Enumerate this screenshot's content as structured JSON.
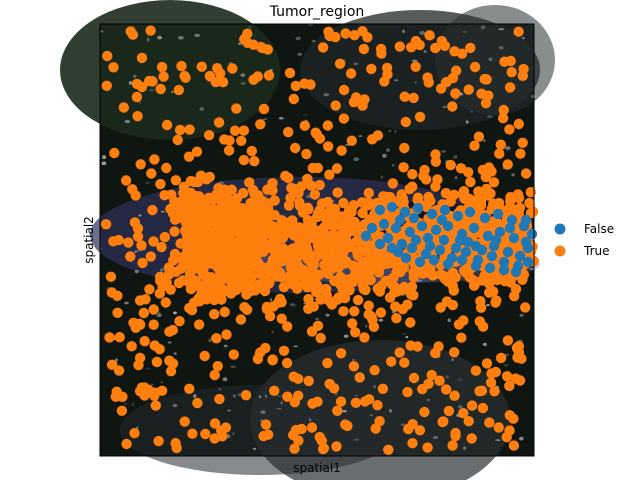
{
  "chart_data": {
    "type": "scatter",
    "title": "Tumor_region",
    "xlabel": "spatial1",
    "ylabel": "spatial2",
    "xticks": [],
    "yticks": [],
    "grid": false,
    "legend": {
      "placement": "right",
      "entries": [
        {
          "label": "False",
          "color": "#1f77b4"
        },
        {
          "label": "True",
          "color": "#ff7f0e"
        }
      ]
    },
    "background": "tissue image (dark, fluorescence-like) behind points",
    "series": [
      {
        "name": "False",
        "color": "#1f77b4",
        "approx_count": 75,
        "region_hint": "elongated band in the right-center of the image",
        "points": [
          [
            380,
            210
          ],
          [
            392,
            207
          ],
          [
            405,
            212
          ],
          [
            418,
            208
          ],
          [
            432,
            214
          ],
          [
            445,
            210
          ],
          [
            458,
            216
          ],
          [
            470,
            212
          ],
          [
            485,
            218
          ],
          [
            498,
            214
          ],
          [
            512,
            220
          ],
          [
            524,
            226
          ],
          [
            384,
            224
          ],
          [
            396,
            228
          ],
          [
            410,
            232
          ],
          [
            422,
            226
          ],
          [
            436,
            230
          ],
          [
            448,
            226
          ],
          [
            462,
            234
          ],
          [
            474,
            228
          ],
          [
            488,
            236
          ],
          [
            500,
            232
          ],
          [
            514,
            238
          ],
          [
            526,
            242
          ],
          [
            372,
            228
          ],
          [
            388,
            238
          ],
          [
            402,
            244
          ],
          [
            416,
            240
          ],
          [
            430,
            246
          ],
          [
            444,
            240
          ],
          [
            456,
            248
          ],
          [
            468,
            242
          ],
          [
            482,
            250
          ],
          [
            494,
            246
          ],
          [
            508,
            252
          ],
          [
            520,
            256
          ],
          [
            366,
            236
          ],
          [
            380,
            244
          ],
          [
            398,
            252
          ],
          [
            412,
            248
          ],
          [
            426,
            254
          ],
          [
            440,
            250
          ],
          [
            452,
            258
          ],
          [
            466,
            252
          ],
          [
            478,
            260
          ],
          [
            492,
            256
          ],
          [
            504,
            262
          ],
          [
            518,
            266
          ],
          [
            528,
            248
          ],
          [
            528,
            262
          ],
          [
            532,
            234
          ],
          [
            526,
            220
          ],
          [
            510,
            228
          ],
          [
            496,
            240
          ],
          [
            476,
            246
          ],
          [
            460,
            240
          ],
          [
            442,
            220
          ],
          [
            428,
            238
          ],
          [
            414,
            218
          ],
          [
            400,
            220
          ],
          [
            392,
            248
          ],
          [
            406,
            258
          ],
          [
            420,
            262
          ],
          [
            434,
            260
          ],
          [
            448,
            264
          ],
          [
            462,
            260
          ],
          [
            476,
            266
          ],
          [
            490,
            268
          ],
          [
            504,
            270
          ],
          [
            516,
            272
          ]
        ]
      },
      {
        "name": "True",
        "color": "#ff7f0e",
        "approx_count": 1450,
        "region_hint": "covers most of the field, densest along a diagonal/horizontal band through the center",
        "points": []
      }
    ]
  }
}
